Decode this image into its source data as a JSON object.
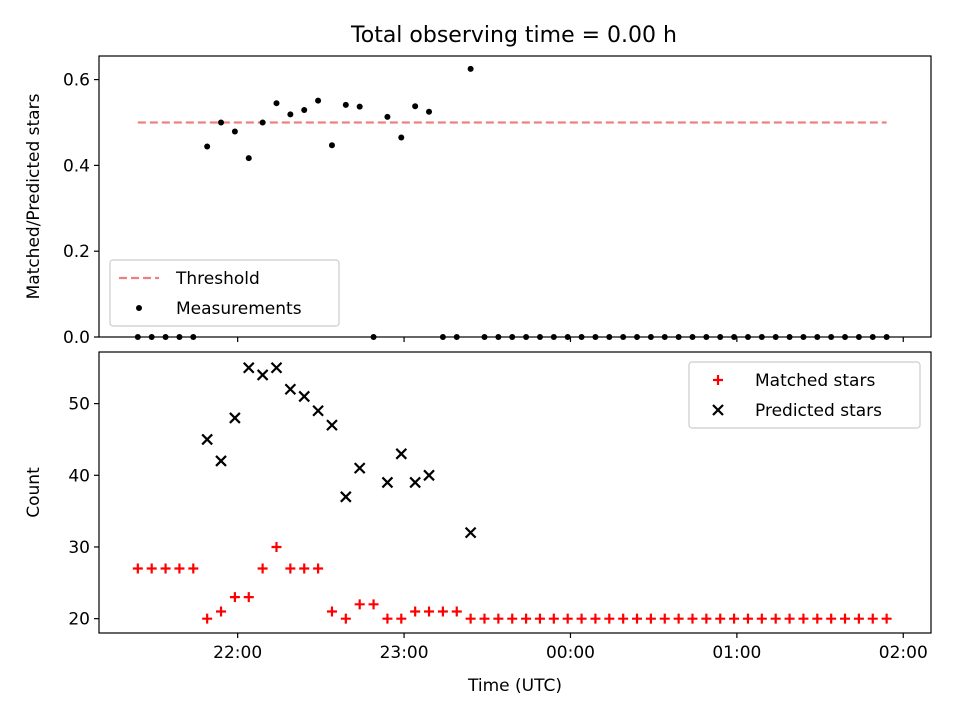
{
  "figure": {
    "title": "Total observing time = 0.00 h"
  },
  "chart_data": [
    {
      "type": "scatter",
      "ylabel": "Matched/Predicted stars",
      "xlabel": "",
      "ylim": [
        0.0,
        0.655
      ],
      "xlim": [
        "21:10",
        "02:10"
      ],
      "yticks": [
        0.0,
        0.2,
        0.4,
        0.6
      ],
      "ytick_labels": [
        "0.0",
        "0.2",
        "0.4",
        "0.6"
      ],
      "legend_position": "lower-left",
      "grid": false,
      "series": [
        {
          "name": "Threshold",
          "kind": "line",
          "style": "dashed",
          "color": "#f08080",
          "x": [
            "21:24",
            "01:54"
          ],
          "y": [
            0.5,
            0.5
          ]
        },
        {
          "name": "Measurements",
          "kind": "scatter",
          "marker": "dot",
          "color": "#000000",
          "x": [
            "21:24",
            "21:29",
            "21:34",
            "21:39",
            "21:44",
            "21:49",
            "21:54",
            "21:59",
            "22:04",
            "22:09",
            "22:14",
            "22:19",
            "22:24",
            "22:29",
            "22:34",
            "22:39",
            "22:44",
            "22:49",
            "22:54",
            "22:59",
            "23:04",
            "23:09",
            "23:14",
            "23:19",
            "23:24",
            "23:29",
            "23:34",
            "23:39",
            "23:44",
            "23:49",
            "23:54",
            "23:59",
            "00:04",
            "00:09",
            "00:14",
            "00:19",
            "00:24",
            "00:29",
            "00:34",
            "00:39",
            "00:44",
            "00:49",
            "00:54",
            "00:59",
            "01:04",
            "01:09",
            "01:14",
            "01:19",
            "01:24",
            "01:29",
            "01:34",
            "01:39",
            "01:44",
            "01:49",
            "01:54"
          ],
          "y": [
            0,
            0,
            0,
            0,
            0,
            0.444,
            0.5,
            0.479,
            0.417,
            0.5,
            0.545,
            0.519,
            0.529,
            0.551,
            0.447,
            0.541,
            0.537,
            0,
            0.513,
            0.465,
            0.538,
            0.525,
            0,
            0,
            0.625,
            0,
            0,
            0,
            0,
            0,
            0,
            0,
            0,
            0,
            0,
            0,
            0,
            0,
            0,
            0,
            0,
            0,
            0,
            0,
            0,
            0,
            0,
            0,
            0,
            0,
            0,
            0,
            0,
            0,
            0
          ]
        }
      ]
    },
    {
      "type": "scatter",
      "xlabel": "Time (UTC)",
      "ylabel": "Count",
      "ylim": [
        18.0,
        57.2
      ],
      "xlim": [
        "21:10",
        "02:10"
      ],
      "xticks": [
        "22:00",
        "23:00",
        "00:00",
        "01:00",
        "02:00"
      ],
      "xtick_labels": [
        "22:00",
        "23:00",
        "00:00",
        "01:00",
        "02:00"
      ],
      "yticks": [
        20,
        30,
        40,
        50
      ],
      "ytick_labels": [
        "20",
        "30",
        "40",
        "50"
      ],
      "legend_position": "top-right",
      "grid": false,
      "series": [
        {
          "name": "Matched stars",
          "kind": "scatter",
          "marker": "plus",
          "color": "#ff0000",
          "x": [
            "21:24",
            "21:29",
            "21:34",
            "21:39",
            "21:44",
            "21:49",
            "21:54",
            "21:59",
            "22:04",
            "22:09",
            "22:14",
            "22:19",
            "22:24",
            "22:29",
            "22:34",
            "22:39",
            "22:44",
            "22:49",
            "22:54",
            "22:59",
            "23:04",
            "23:09",
            "23:14",
            "23:19",
            "23:24",
            "23:29",
            "23:34",
            "23:39",
            "23:44",
            "23:49",
            "23:54",
            "23:59",
            "00:04",
            "00:09",
            "00:14",
            "00:19",
            "00:24",
            "00:29",
            "00:34",
            "00:39",
            "00:44",
            "00:49",
            "00:54",
            "00:59",
            "01:04",
            "01:09",
            "01:14",
            "01:19",
            "01:24",
            "01:29",
            "01:34",
            "01:39",
            "01:44",
            "01:49",
            "01:54"
          ],
          "y": [
            27,
            27,
            27,
            27,
            27,
            20,
            21,
            23,
            23,
            27,
            30,
            27,
            27,
            27,
            21,
            20,
            22,
            22,
            20,
            20,
            21,
            21,
            21,
            21,
            20,
            20,
            20,
            20,
            20,
            20,
            20,
            20,
            20,
            20,
            20,
            20,
            20,
            20,
            20,
            20,
            20,
            20,
            20,
            20,
            20,
            20,
            20,
            20,
            20,
            20,
            20,
            20,
            20,
            20,
            20
          ]
        },
        {
          "name": "Predicted stars",
          "kind": "scatter",
          "marker": "x",
          "color": "#000000",
          "x": [
            "21:49",
            "21:54",
            "21:59",
            "22:04",
            "22:09",
            "22:14",
            "22:19",
            "22:24",
            "22:29",
            "22:34",
            "22:39",
            "22:44",
            "22:54",
            "22:59",
            "23:04",
            "23:09",
            "23:24"
          ],
          "y": [
            45,
            42,
            48,
            55,
            54,
            55,
            52,
            51,
            49,
            47,
            37,
            41,
            39,
            43,
            39,
            40,
            32
          ]
        }
      ]
    }
  ]
}
